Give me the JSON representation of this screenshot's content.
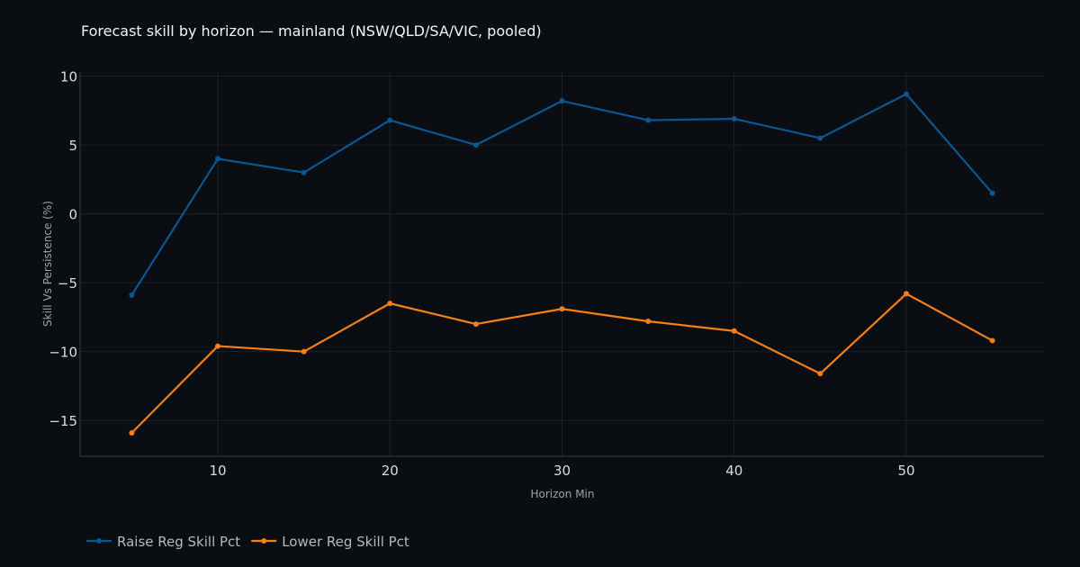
{
  "chart_data": {
    "type": "line",
    "title": "Forecast skill by horizon — mainland (NSW/QLD/SA/VIC, pooled)",
    "xlabel": "Horizon Min",
    "ylabel": "Skill Vs Persistence (%)",
    "x": [
      5,
      10,
      15,
      20,
      25,
      30,
      35,
      40,
      45,
      50,
      55
    ],
    "xlim": [
      2,
      58
    ],
    "ylim": [
      -17.6,
      10.3
    ],
    "xticks": [
      10,
      20,
      30,
      40,
      50
    ],
    "yticks": [
      10,
      5,
      0,
      -5,
      -10,
      -15
    ],
    "ytick_labels": [
      "10",
      "5",
      "0",
      "−5",
      "−10",
      "−15"
    ],
    "grid": true,
    "legend_position": "bottom-left",
    "series": [
      {
        "name": "Raise Reg Skill Pct",
        "color": "#0b5791",
        "values": [
          -5.9,
          4.0,
          3.0,
          6.8,
          5.0,
          8.2,
          6.8,
          6.9,
          5.5,
          8.7,
          1.5
        ]
      },
      {
        "name": "Lower Reg Skill Pct",
        "color": "#f77f18",
        "values": [
          -15.9,
          -9.6,
          -10.0,
          -6.5,
          -8.0,
          -6.9,
          -7.8,
          -8.5,
          -11.6,
          -5.8,
          -9.2
        ]
      }
    ]
  },
  "colors": {
    "background": "#0a0e13",
    "grid": "#1b2027",
    "axis": "#3a3f46"
  }
}
